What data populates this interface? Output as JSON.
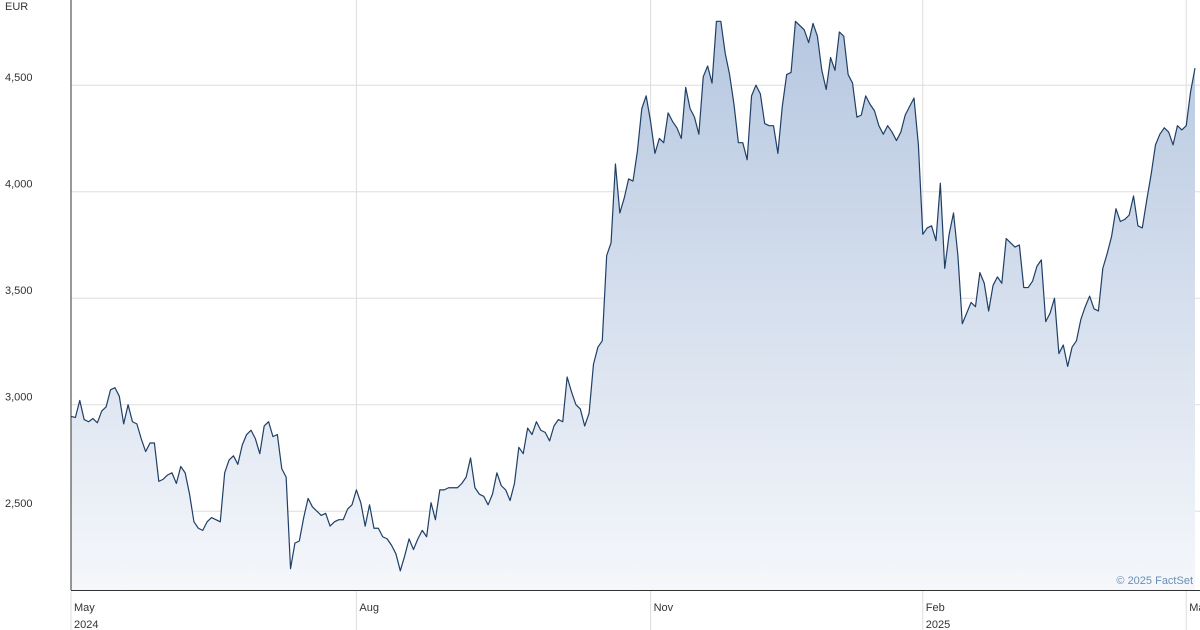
{
  "chart_data": {
    "type": "area",
    "currency_label": "EUR",
    "credit": "© 2025 FactSet",
    "ylim": [
      2130,
      4900
    ],
    "y_ticks": [
      {
        "value": 2500,
        "label": "2,500"
      },
      {
        "value": 3000,
        "label": "3,000"
      },
      {
        "value": 3500,
        "label": "3,500"
      },
      {
        "value": 4000,
        "label": "4,000"
      },
      {
        "value": 4500,
        "label": "4,500"
      }
    ],
    "x_ticks": [
      {
        "index": 0,
        "label": "May",
        "year": "2024"
      },
      {
        "index": 65,
        "label": "Aug",
        "year": ""
      },
      {
        "index": 132,
        "label": "Nov",
        "year": ""
      },
      {
        "index": 194,
        "label": "Feb",
        "year": "2025"
      },
      {
        "index": 254,
        "label": "May",
        "year": ""
      }
    ],
    "grid": true,
    "colors": {
      "line": "#1f3f66",
      "fill_top": "#b6c7e0",
      "fill_bottom": "#f5f7fb",
      "grid": "#dddddd",
      "axis": "#333333"
    },
    "series": [
      {
        "values": [
          2945,
          2940,
          3020,
          2930,
          2920,
          2935,
          2915,
          2970,
          2990,
          3070,
          3080,
          3040,
          2910,
          3000,
          2920,
          2910,
          2840,
          2780,
          2820,
          2820,
          2640,
          2650,
          2670,
          2680,
          2630,
          2710,
          2680,
          2580,
          2450,
          2420,
          2410,
          2450,
          2470,
          2460,
          2450,
          2680,
          2740,
          2760,
          2720,
          2810,
          2860,
          2880,
          2840,
          2770,
          2900,
          2920,
          2850,
          2860,
          2700,
          2660,
          2230,
          2350,
          2360,
          2470,
          2560,
          2520,
          2500,
          2480,
          2490,
          2430,
          2450,
          2460,
          2460,
          2510,
          2530,
          2600,
          2540,
          2430,
          2530,
          2420,
          2420,
          2380,
          2370,
          2340,
          2300,
          2220,
          2290,
          2370,
          2320,
          2370,
          2410,
          2380,
          2540,
          2460,
          2600,
          2600,
          2610,
          2610,
          2610,
          2630,
          2660,
          2750,
          2610,
          2580,
          2570,
          2530,
          2580,
          2680,
          2620,
          2600,
          2550,
          2630,
          2800,
          2770,
          2890,
          2860,
          2920,
          2880,
          2870,
          2830,
          2900,
          2930,
          2920,
          3130,
          3060,
          3000,
          2980,
          2900,
          2960,
          3190,
          3270,
          3300,
          3700,
          3760,
          4130,
          3900,
          3970,
          4060,
          4050,
          4190,
          4390,
          4450,
          4330,
          4180,
          4250,
          4230,
          4370,
          4330,
          4300,
          4250,
          4490,
          4390,
          4350,
          4270,
          4540,
          4590,
          4510,
          4800,
          4800,
          4650,
          4550,
          4410,
          4230,
          4230,
          4150,
          4450,
          4500,
          4460,
          4320,
          4310,
          4310,
          4180,
          4400,
          4550,
          4560,
          4800,
          4780,
          4760,
          4700,
          4790,
          4730,
          4570,
          4480,
          4630,
          4570,
          4750,
          4730,
          4550,
          4510,
          4350,
          4360,
          4450,
          4410,
          4380,
          4310,
          4270,
          4310,
          4280,
          4240,
          4280,
          4360,
          4400,
          4440,
          4220,
          3800,
          3830,
          3840,
          3770,
          4040,
          3640,
          3800,
          3900,
          3700,
          3380,
          3430,
          3480,
          3460,
          3620,
          3570,
          3440,
          3560,
          3600,
          3570,
          3780,
          3760,
          3740,
          3750,
          3550,
          3550,
          3580,
          3650,
          3680,
          3390,
          3430,
          3500,
          3240,
          3280,
          3180,
          3270,
          3300,
          3400,
          3460,
          3510,
          3450,
          3440,
          3640,
          3710,
          3790,
          3920,
          3860,
          3870,
          3890,
          3980,
          3840,
          3830,
          3960,
          4080,
          4220,
          4270,
          4300,
          4280,
          4220,
          4310,
          4290,
          4310,
          4470,
          4580
        ]
      }
    ]
  }
}
